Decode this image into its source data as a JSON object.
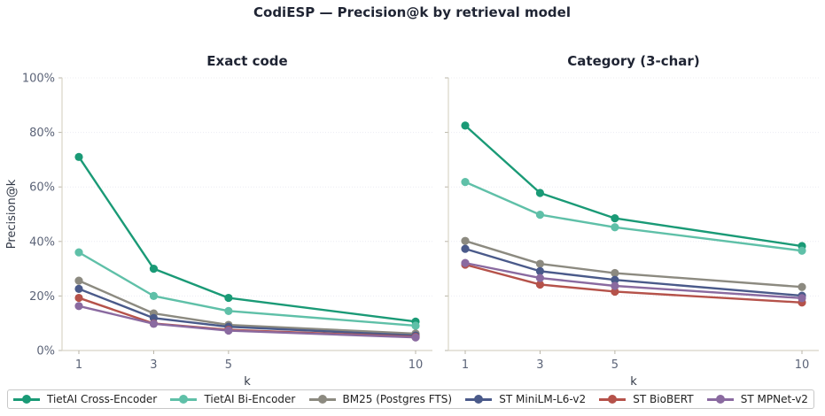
{
  "chart_data": {
    "type": "line",
    "title": "CodiESP — Precision@k by retrieval model",
    "x": [
      1,
      3,
      5,
      10
    ],
    "xlabel": "k",
    "ylabel": "Precision@k",
    "ylim": [
      0,
      1
    ],
    "yticks": [
      "0%",
      "20%",
      "40%",
      "60%",
      "80%",
      "100%"
    ],
    "xticks": [
      "1",
      "3",
      "5",
      "10"
    ],
    "legend": "bottom",
    "grid": true,
    "series_meta": [
      {
        "name": "TietAI Cross-Encoder",
        "color": "#1a9a76"
      },
      {
        "name": "TietAI Bi-Encoder",
        "color": "#5fc0a8"
      },
      {
        "name": "BM25 (Postgres FTS)",
        "color": "#8c8a80"
      },
      {
        "name": "ST MiniLM-L6-v2",
        "color": "#4a5a8a"
      },
      {
        "name": "ST BioBERT",
        "color": "#b5524a"
      },
      {
        "name": "ST MPNet-v2",
        "color": "#8a6aa0"
      }
    ],
    "panels": [
      {
        "title": "Exact code",
        "series": [
          {
            "name": "TietAI Cross-Encoder",
            "values": [
              0.71,
              0.3,
              0.193,
              0.106
            ]
          },
          {
            "name": "TietAI Bi-Encoder",
            "values": [
              0.36,
              0.2,
              0.145,
              0.091
            ]
          },
          {
            "name": "BM25 (Postgres FTS)",
            "values": [
              0.256,
              0.136,
              0.094,
              0.062
            ]
          },
          {
            "name": "ST MiniLM-L6-v2",
            "values": [
              0.226,
              0.119,
              0.087,
              0.055
            ]
          },
          {
            "name": "ST BioBERT",
            "values": [
              0.193,
              0.099,
              0.076,
              0.05
            ]
          },
          {
            "name": "ST MPNet-v2",
            "values": [
              0.163,
              0.098,
              0.073,
              0.048
            ]
          }
        ]
      },
      {
        "title": "Category (3-char)",
        "series": [
          {
            "name": "TietAI Cross-Encoder",
            "values": [
              0.825,
              0.578,
              0.485,
              0.383
            ]
          },
          {
            "name": "TietAI Bi-Encoder",
            "values": [
              0.618,
              0.498,
              0.452,
              0.366
            ]
          },
          {
            "name": "BM25 (Postgres FTS)",
            "values": [
              0.402,
              0.318,
              0.284,
              0.233
            ]
          },
          {
            "name": "ST MiniLM-L6-v2",
            "values": [
              0.373,
              0.291,
              0.259,
              0.201
            ]
          },
          {
            "name": "ST BioBERT",
            "values": [
              0.315,
              0.242,
              0.216,
              0.176
            ]
          },
          {
            "name": "ST MPNet-v2",
            "values": [
              0.321,
              0.266,
              0.237,
              0.192
            ]
          }
        ]
      }
    ]
  }
}
